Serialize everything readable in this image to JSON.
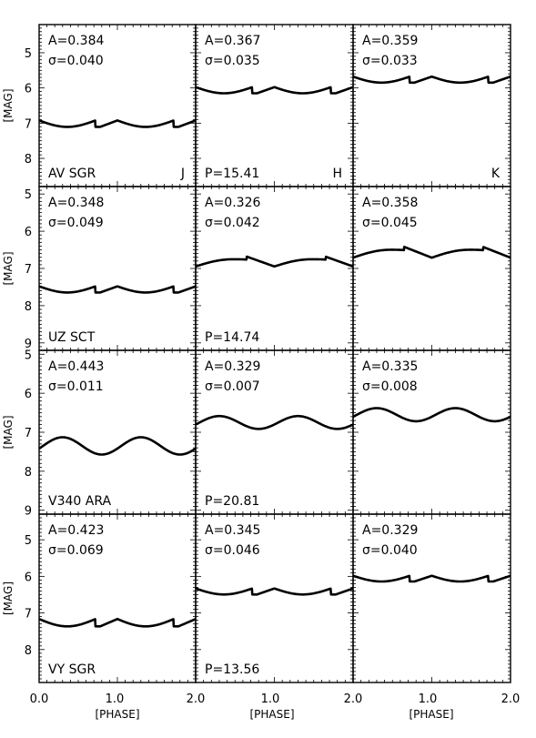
{
  "figure": {
    "ylabel": "[MAG]",
    "xlabel": "[PHASE]",
    "x_ticks": [
      "0.0",
      "1.0",
      "2.0"
    ],
    "band_labels": [
      "J",
      "H",
      "K"
    ],
    "xlim": [
      0.0,
      2.0
    ]
  },
  "chart_data": [
    {
      "type": "line",
      "panel": "1-1",
      "star": "AV SGR",
      "band": "J",
      "period": "",
      "A": "A=0.384",
      "sigma": "σ=0.040",
      "ylim": [
        8.8,
        4.2
      ],
      "y_ticks": [
        "5",
        "6",
        "7",
        "8"
      ],
      "mean_mag": 7.0,
      "amplitude": 0.384,
      "profile": "sawtooth"
    },
    {
      "type": "line",
      "panel": "1-2",
      "star": "",
      "band": "H",
      "period": "P=15.41",
      "A": "A=0.367",
      "sigma": "σ=0.035",
      "ylim": [
        8.8,
        4.2
      ],
      "y_ticks": [],
      "mean_mag": 6.05,
      "amplitude": 0.367,
      "profile": "sawtooth"
    },
    {
      "type": "line",
      "panel": "1-3",
      "star": "",
      "band": "K",
      "period": "",
      "A": "A=0.359",
      "sigma": "σ=0.033",
      "ylim": [
        8.8,
        4.2
      ],
      "y_ticks": [],
      "mean_mag": 5.75,
      "amplitude": 0.359,
      "profile": "sawtooth"
    },
    {
      "type": "line",
      "panel": "2-1",
      "star": "UZ SCT",
      "band": "",
      "period": "",
      "A": "A=0.348",
      "sigma": "σ=0.049",
      "ylim": [
        9.2,
        4.8
      ],
      "y_ticks": [
        "5",
        "6",
        "7",
        "8",
        "9"
      ],
      "mean_mag": 7.55,
      "amplitude": 0.348,
      "profile": "sawtooth"
    },
    {
      "type": "line",
      "panel": "2-2",
      "star": "",
      "band": "",
      "period": "P=14.74",
      "A": "A=0.326",
      "sigma": "σ=0.042",
      "ylim": [
        9.2,
        4.8
      ],
      "y_ticks": [],
      "mean_mag": 6.8,
      "amplitude": 0.326,
      "profile": "bump"
    },
    {
      "type": "line",
      "panel": "2-3",
      "star": "",
      "band": "",
      "period": "",
      "A": "A=0.358",
      "sigma": "σ=0.045",
      "ylim": [
        9.2,
        4.8
      ],
      "y_ticks": [],
      "mean_mag": 6.55,
      "amplitude": 0.358,
      "profile": "bump"
    },
    {
      "type": "line",
      "panel": "3-1",
      "star": "V340 ARA",
      "band": "",
      "period": "",
      "A": "A=0.443",
      "sigma": "σ=0.011",
      "ylim": [
        9.1,
        4.9
      ],
      "y_ticks": [
        "5",
        "6",
        "7",
        "8",
        "9"
      ],
      "mean_mag": 7.35,
      "amplitude": 0.443,
      "profile": "smooth"
    },
    {
      "type": "line",
      "panel": "3-2",
      "star": "",
      "band": "",
      "period": "P=20.81",
      "A": "A=0.329",
      "sigma": "σ=0.007",
      "ylim": [
        9.1,
        4.9
      ],
      "y_ticks": [],
      "mean_mag": 6.75,
      "amplitude": 0.329,
      "profile": "smooth"
    },
    {
      "type": "line",
      "panel": "3-3",
      "star": "",
      "band": "",
      "period": "",
      "A": "A=0.335",
      "sigma": "σ=0.008",
      "ylim": [
        9.1,
        4.9
      ],
      "y_ticks": [],
      "mean_mag": 6.55,
      "amplitude": 0.335,
      "profile": "smooth"
    },
    {
      "type": "line",
      "panel": "4-1",
      "star": "VY SGR",
      "band": "",
      "period": "",
      "A": "A=0.423",
      "sigma": "σ=0.069",
      "ylim": [
        8.9,
        4.3
      ],
      "y_ticks": [
        "5",
        "6",
        "7",
        "8"
      ],
      "mean_mag": 7.25,
      "amplitude": 0.423,
      "profile": "sawtooth"
    },
    {
      "type": "line",
      "panel": "4-2",
      "star": "",
      "band": "",
      "period": "P=13.56",
      "A": "A=0.345",
      "sigma": "σ=0.046",
      "ylim": [
        8.9,
        4.3
      ],
      "y_ticks": [],
      "mean_mag": 6.4,
      "amplitude": 0.345,
      "profile": "sawtooth"
    },
    {
      "type": "line",
      "panel": "4-3",
      "star": "",
      "band": "",
      "period": "",
      "A": "A=0.329",
      "sigma": "σ=0.040",
      "ylim": [
        8.9,
        4.3
      ],
      "y_ticks": [],
      "mean_mag": 6.05,
      "amplitude": 0.329,
      "profile": "sawtooth"
    }
  ]
}
